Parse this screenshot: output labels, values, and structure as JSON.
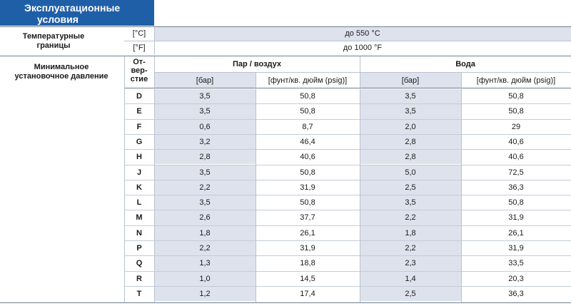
{
  "title_line1": "Эксплуатационные",
  "title_line2": "условия",
  "temp": {
    "label_line1": "Температурные",
    "label_line2": "границы",
    "unit_c": "[°C]",
    "value_c": "до 550 °C",
    "unit_f": "[°F]",
    "value_f": "до 1000 °F"
  },
  "pressure": {
    "label_line1": "Минимальное",
    "label_line2": "установочное давление",
    "orifice_line1": "От-",
    "orifice_line2": "вер-",
    "orifice_line3": "стие",
    "steam_header": "Пар / воздух",
    "water_header": "Вода",
    "unit_bar": "[бар]",
    "unit_psig": "[фунт/кв. дюйм (psig)]"
  },
  "rows": [
    {
      "orifice": "D",
      "steam_bar": "3,5",
      "steam_psig": "50,8",
      "water_bar": "3,5",
      "water_psig": "50,8"
    },
    {
      "orifice": "E",
      "steam_bar": "3,5",
      "steam_psig": "50,8",
      "water_bar": "3,5",
      "water_psig": "50,8"
    },
    {
      "orifice": "F",
      "steam_bar": "0,6",
      "steam_psig": "8,7",
      "water_bar": "2,0",
      "water_psig": "29"
    },
    {
      "orifice": "G",
      "steam_bar": "3,2",
      "steam_psig": "46,4",
      "water_bar": "2,8",
      "water_psig": "40,6"
    },
    {
      "orifice": "H",
      "steam_bar": "2,8",
      "steam_psig": "40,6",
      "water_bar": "2,8",
      "water_psig": "40,6"
    },
    {
      "orifice": "J",
      "steam_bar": "3,5",
      "steam_psig": "50,8",
      "water_bar": "5,0",
      "water_psig": "72,5"
    },
    {
      "orifice": "K",
      "steam_bar": "2,2",
      "steam_psig": "31,9",
      "water_bar": "2,5",
      "water_psig": "36,3"
    },
    {
      "orifice": "L",
      "steam_bar": "3,5",
      "steam_psig": "50,8",
      "water_bar": "3,5",
      "water_psig": "50,8"
    },
    {
      "orifice": "M",
      "steam_bar": "2,6",
      "steam_psig": "37,7",
      "water_bar": "2,2",
      "water_psig": "31,9"
    },
    {
      "orifice": "N",
      "steam_bar": "1,8",
      "steam_psig": "26,1",
      "water_bar": "1,8",
      "water_psig": "26,1"
    },
    {
      "orifice": "P",
      "steam_bar": "2,2",
      "steam_psig": "31,9",
      "water_bar": "2,2",
      "water_psig": "31,9"
    },
    {
      "orifice": "Q",
      "steam_bar": "1,3",
      "steam_psig": "18,8",
      "water_bar": "2,3",
      "water_psig": "33,5"
    },
    {
      "orifice": "R",
      "steam_bar": "1,0",
      "steam_psig": "14,5",
      "water_bar": "1,4",
      "water_psig": "20,3"
    },
    {
      "orifice": "T",
      "steam_bar": "1,2",
      "steam_psig": "17,4",
      "water_bar": "2,5",
      "water_psig": "36,3"
    }
  ]
}
